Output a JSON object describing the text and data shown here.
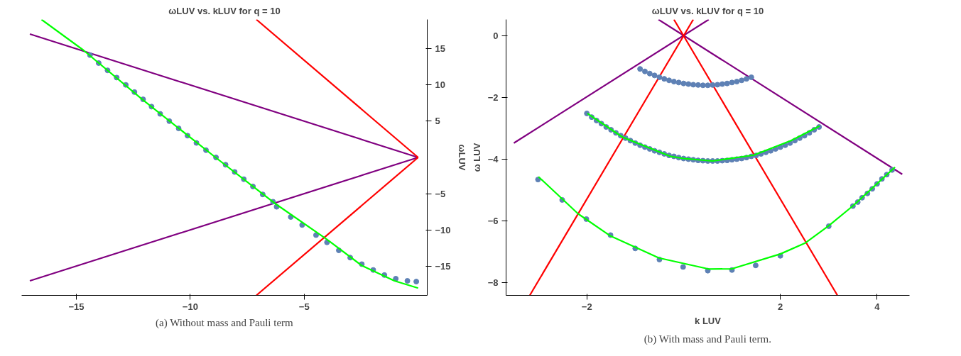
{
  "chart_data": [
    {
      "type": "line",
      "title": "ωLUV vs. kLUV for q = 10",
      "ylabel": "ωLUV",
      "xlim": [
        -17.4,
        0.4
      ],
      "ylim": [
        -19,
        19
      ],
      "xticks": [
        -15,
        -10,
        -5
      ],
      "yticks": [
        -15,
        -10,
        -5,
        5,
        10,
        15
      ],
      "grid": false,
      "annotations": [
        "(a) Without mass and Pauli term"
      ],
      "series": [
        {
          "type": "line",
          "color": "#800080",
          "x": [
            -17.04,
            0
          ],
          "values": [
            17.0,
            0
          ]
        },
        {
          "type": "line",
          "color": "#800080",
          "x": [
            -17.04,
            0
          ],
          "values": [
            -17.0,
            0
          ]
        },
        {
          "type": "line",
          "color": "#ff0000",
          "x": [
            -7.1,
            0
          ],
          "values": [
            19,
            0
          ]
        },
        {
          "type": "line",
          "color": "#ff0000",
          "x": [
            -7.1,
            0
          ],
          "values": [
            -19,
            0
          ]
        },
        {
          "type": "scatter",
          "marker": "circle",
          "color": "#5e81b5",
          "x": [
            -14.4,
            -14.02,
            -13.63,
            -13.23,
            -12.83,
            -12.45,
            -12.07,
            -11.7,
            -11.32,
            -10.92,
            -10.51,
            -10.12,
            -9.73,
            -9.31,
            -8.87,
            -8.45,
            -8.05,
            -7.65,
            -7.25,
            -6.82,
            -6.37,
            -6.21,
            -5.59,
            -5.09,
            -4.48,
            -4.0,
            -3.48,
            -2.98,
            -2.47,
            -1.97,
            -1.48,
            -0.98,
            -0.47,
            -0.08
          ],
          "values": [
            14.1,
            13.0,
            12.0,
            11.0,
            10.0,
            9.0,
            8.0,
            7.0,
            6.0,
            5.0,
            4.0,
            3.0,
            2.0,
            1.0,
            0,
            -1.0,
            -2.0,
            -3.0,
            -4.0,
            -5.1,
            -6.1,
            -6.8,
            -8.2,
            -9.3,
            -10.7,
            -11.7,
            -12.8,
            -13.8,
            -14.7,
            -15.5,
            -16.2,
            -16.7,
            -17.0,
            -17.1
          ]
        },
        {
          "type": "line",
          "color": "#00ff00",
          "x": [
            -16.53,
            -14.7,
            -12.07,
            -8.89,
            -6.3,
            -4.0,
            -2.47,
            -1.04,
            0
          ],
          "values": [
            19.0,
            14.8,
            7.9,
            0,
            -6.3,
            -11.3,
            -14.9,
            -17.0,
            -18.0
          ]
        }
      ]
    },
    {
      "type": "line",
      "title": "ωLUV vs. kLUV for q = 10",
      "xlabel": "k LUV",
      "ylabel": "ω LUV",
      "xlim": [
        -3.67,
        4.67
      ],
      "ylim": [
        -8.41,
        0.52
      ],
      "xticks": [
        -2,
        2,
        4
      ],
      "yticks": [
        -8,
        -6,
        -4,
        -2,
        0
      ],
      "grid": false,
      "annotations": [
        "(b) With mass and Pauli term."
      ],
      "series": [
        {
          "type": "line",
          "color": "#800080",
          "x": [
            -3.51,
            0.52
          ],
          "values": [
            -3.48,
            0.52
          ]
        },
        {
          "type": "line",
          "color": "#800080",
          "x": [
            -0.52,
            4.52
          ],
          "values": [
            0.52,
            -4.49
          ]
        },
        {
          "type": "line",
          "color": "#ff0000",
          "x": [
            -3.18,
            0.2
          ],
          "values": [
            -8.41,
            0.52
          ]
        },
        {
          "type": "line",
          "color": "#ff0000",
          "x": [
            -0.2,
            3.18
          ],
          "values": [
            0.52,
            -8.41
          ]
        },
        {
          "type": "scatter",
          "marker": "circle",
          "color": "#5e81b5",
          "x": [
            -0.9,
            -0.8,
            -0.7,
            -0.6,
            -0.5,
            -0.4,
            -0.3,
            -0.2,
            -0.1,
            0,
            0.1,
            0.2,
            0.3,
            0.4,
            0.5,
            0.6,
            0.7,
            0.8,
            0.9,
            1.0,
            1.1,
            1.2,
            1.3,
            1.4
          ],
          "values": [
            -1.08,
            -1.16,
            -1.23,
            -1.29,
            -1.35,
            -1.4,
            -1.45,
            -1.49,
            -1.52,
            -1.55,
            -1.57,
            -1.59,
            -1.6,
            -1.61,
            -1.61,
            -1.6,
            -1.59,
            -1.57,
            -1.55,
            -1.52,
            -1.49,
            -1.45,
            -1.4,
            -1.35
          ]
        },
        {
          "type": "scatter",
          "marker": "circle",
          "color": "#5e81b5",
          "x": [
            -2.0,
            -1.9,
            -1.8,
            -1.7,
            -1.6,
            -1.5,
            -1.4,
            -1.3,
            -1.2,
            -1.1,
            -1.0,
            -0.9,
            -0.8,
            -0.7,
            -0.6,
            -0.5,
            -0.4,
            -0.3,
            -0.2,
            -0.1,
            0,
            0.1,
            0.2,
            0.3,
            0.4,
            0.5,
            0.6,
            0.7,
            0.8,
            0.9,
            1.0,
            1.1,
            1.2,
            1.3,
            1.4,
            1.5,
            1.6,
            1.7,
            1.8,
            1.9,
            2.0,
            2.1,
            2.2,
            2.3,
            2.4,
            2.5,
            2.6,
            2.7,
            2.8
          ],
          "values": [
            -2.52,
            -2.64,
            -2.75,
            -2.85,
            -2.96,
            -3.05,
            -3.15,
            -3.24,
            -3.32,
            -3.4,
            -3.48,
            -3.55,
            -3.61,
            -3.67,
            -3.73,
            -3.78,
            -3.83,
            -3.88,
            -3.91,
            -3.95,
            -3.98,
            -4.0,
            -4.02,
            -4.04,
            -4.05,
            -4.06,
            -4.06,
            -4.06,
            -4.05,
            -4.04,
            -4.02,
            -4.0,
            -3.98,
            -3.95,
            -3.91,
            -3.88,
            -3.83,
            -3.78,
            -3.73,
            -3.67,
            -3.61,
            -3.55,
            -3.48,
            -3.4,
            -3.32,
            -3.24,
            -3.15,
            -3.05,
            -2.96
          ]
        },
        {
          "type": "scatter",
          "marker": "circle",
          "color": "#5e81b5",
          "x": [
            -3.01,
            -2.51,
            -2.01,
            -1.51,
            -1.0,
            -0.5,
            -0.01,
            0.5,
            1.0,
            1.49,
            2.0,
            3.0,
            3.5,
            3.6,
            3.69,
            3.8,
            3.9,
            4.0,
            4.1,
            4.2,
            4.31
          ],
          "values": [
            -4.66,
            -5.32,
            -5.94,
            -6.46,
            -6.89,
            -7.25,
            -7.49,
            -7.61,
            -7.59,
            -7.44,
            -7.13,
            -6.17,
            -5.52,
            -5.39,
            -5.25,
            -5.11,
            -4.96,
            -4.8,
            -4.64,
            -4.5,
            -4.35
          ]
        },
        {
          "type": "line",
          "color": "#00ff00",
          "x": [
            -1.99,
            -1.26,
            -0.27,
            0,
            0.6,
            1.45,
            2.22,
            2.81
          ],
          "values": [
            -2.52,
            -3.29,
            -3.91,
            -3.98,
            -4.06,
            -3.87,
            -3.4,
            -2.93
          ]
        },
        {
          "type": "line",
          "color": "#00ff00",
          "x": [
            -3.0,
            -2.18,
            -1.51,
            -0.51,
            0.53,
            1.0,
            2.0,
            2.52,
            2.99,
            3.51,
            4.37
          ],
          "values": [
            -4.57,
            -5.77,
            -6.49,
            -7.2,
            -7.56,
            -7.55,
            -7.07,
            -6.71,
            -6.17,
            -5.5,
            -4.26
          ]
        }
      ]
    }
  ]
}
